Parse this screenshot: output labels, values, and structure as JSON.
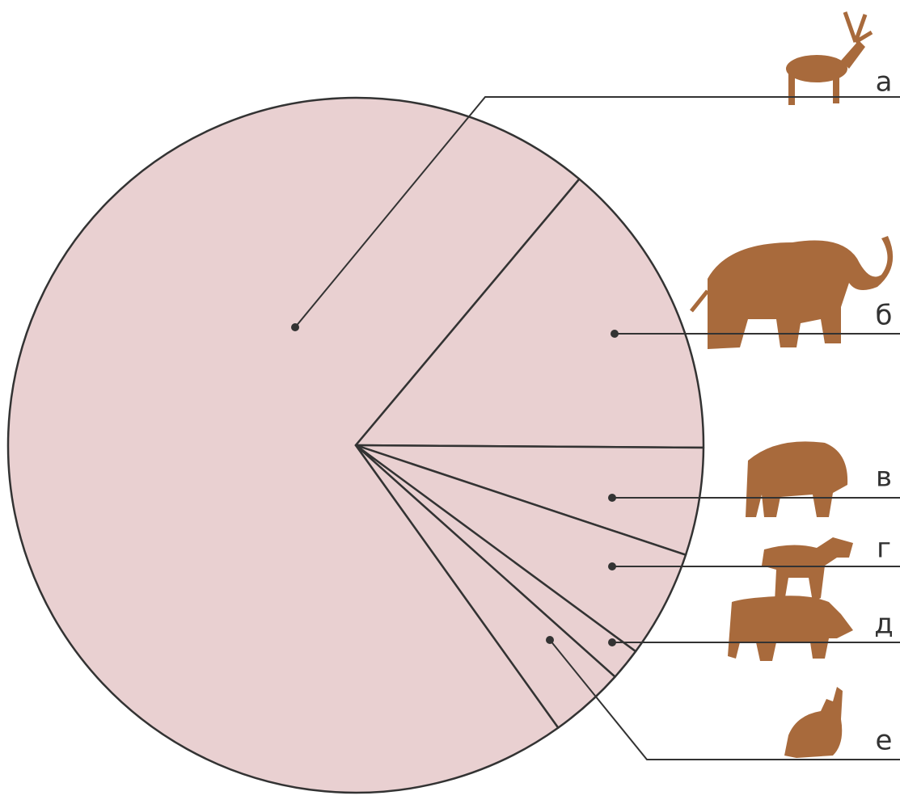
{
  "chart_data": {
    "type": "pie",
    "categories": [
      "а",
      "б",
      "в",
      "г",
      "д",
      "е"
    ],
    "values": [
      71,
      14,
      5,
      5,
      1.5,
      3.5
    ],
    "color": "#e9d0d1"
  }
}
